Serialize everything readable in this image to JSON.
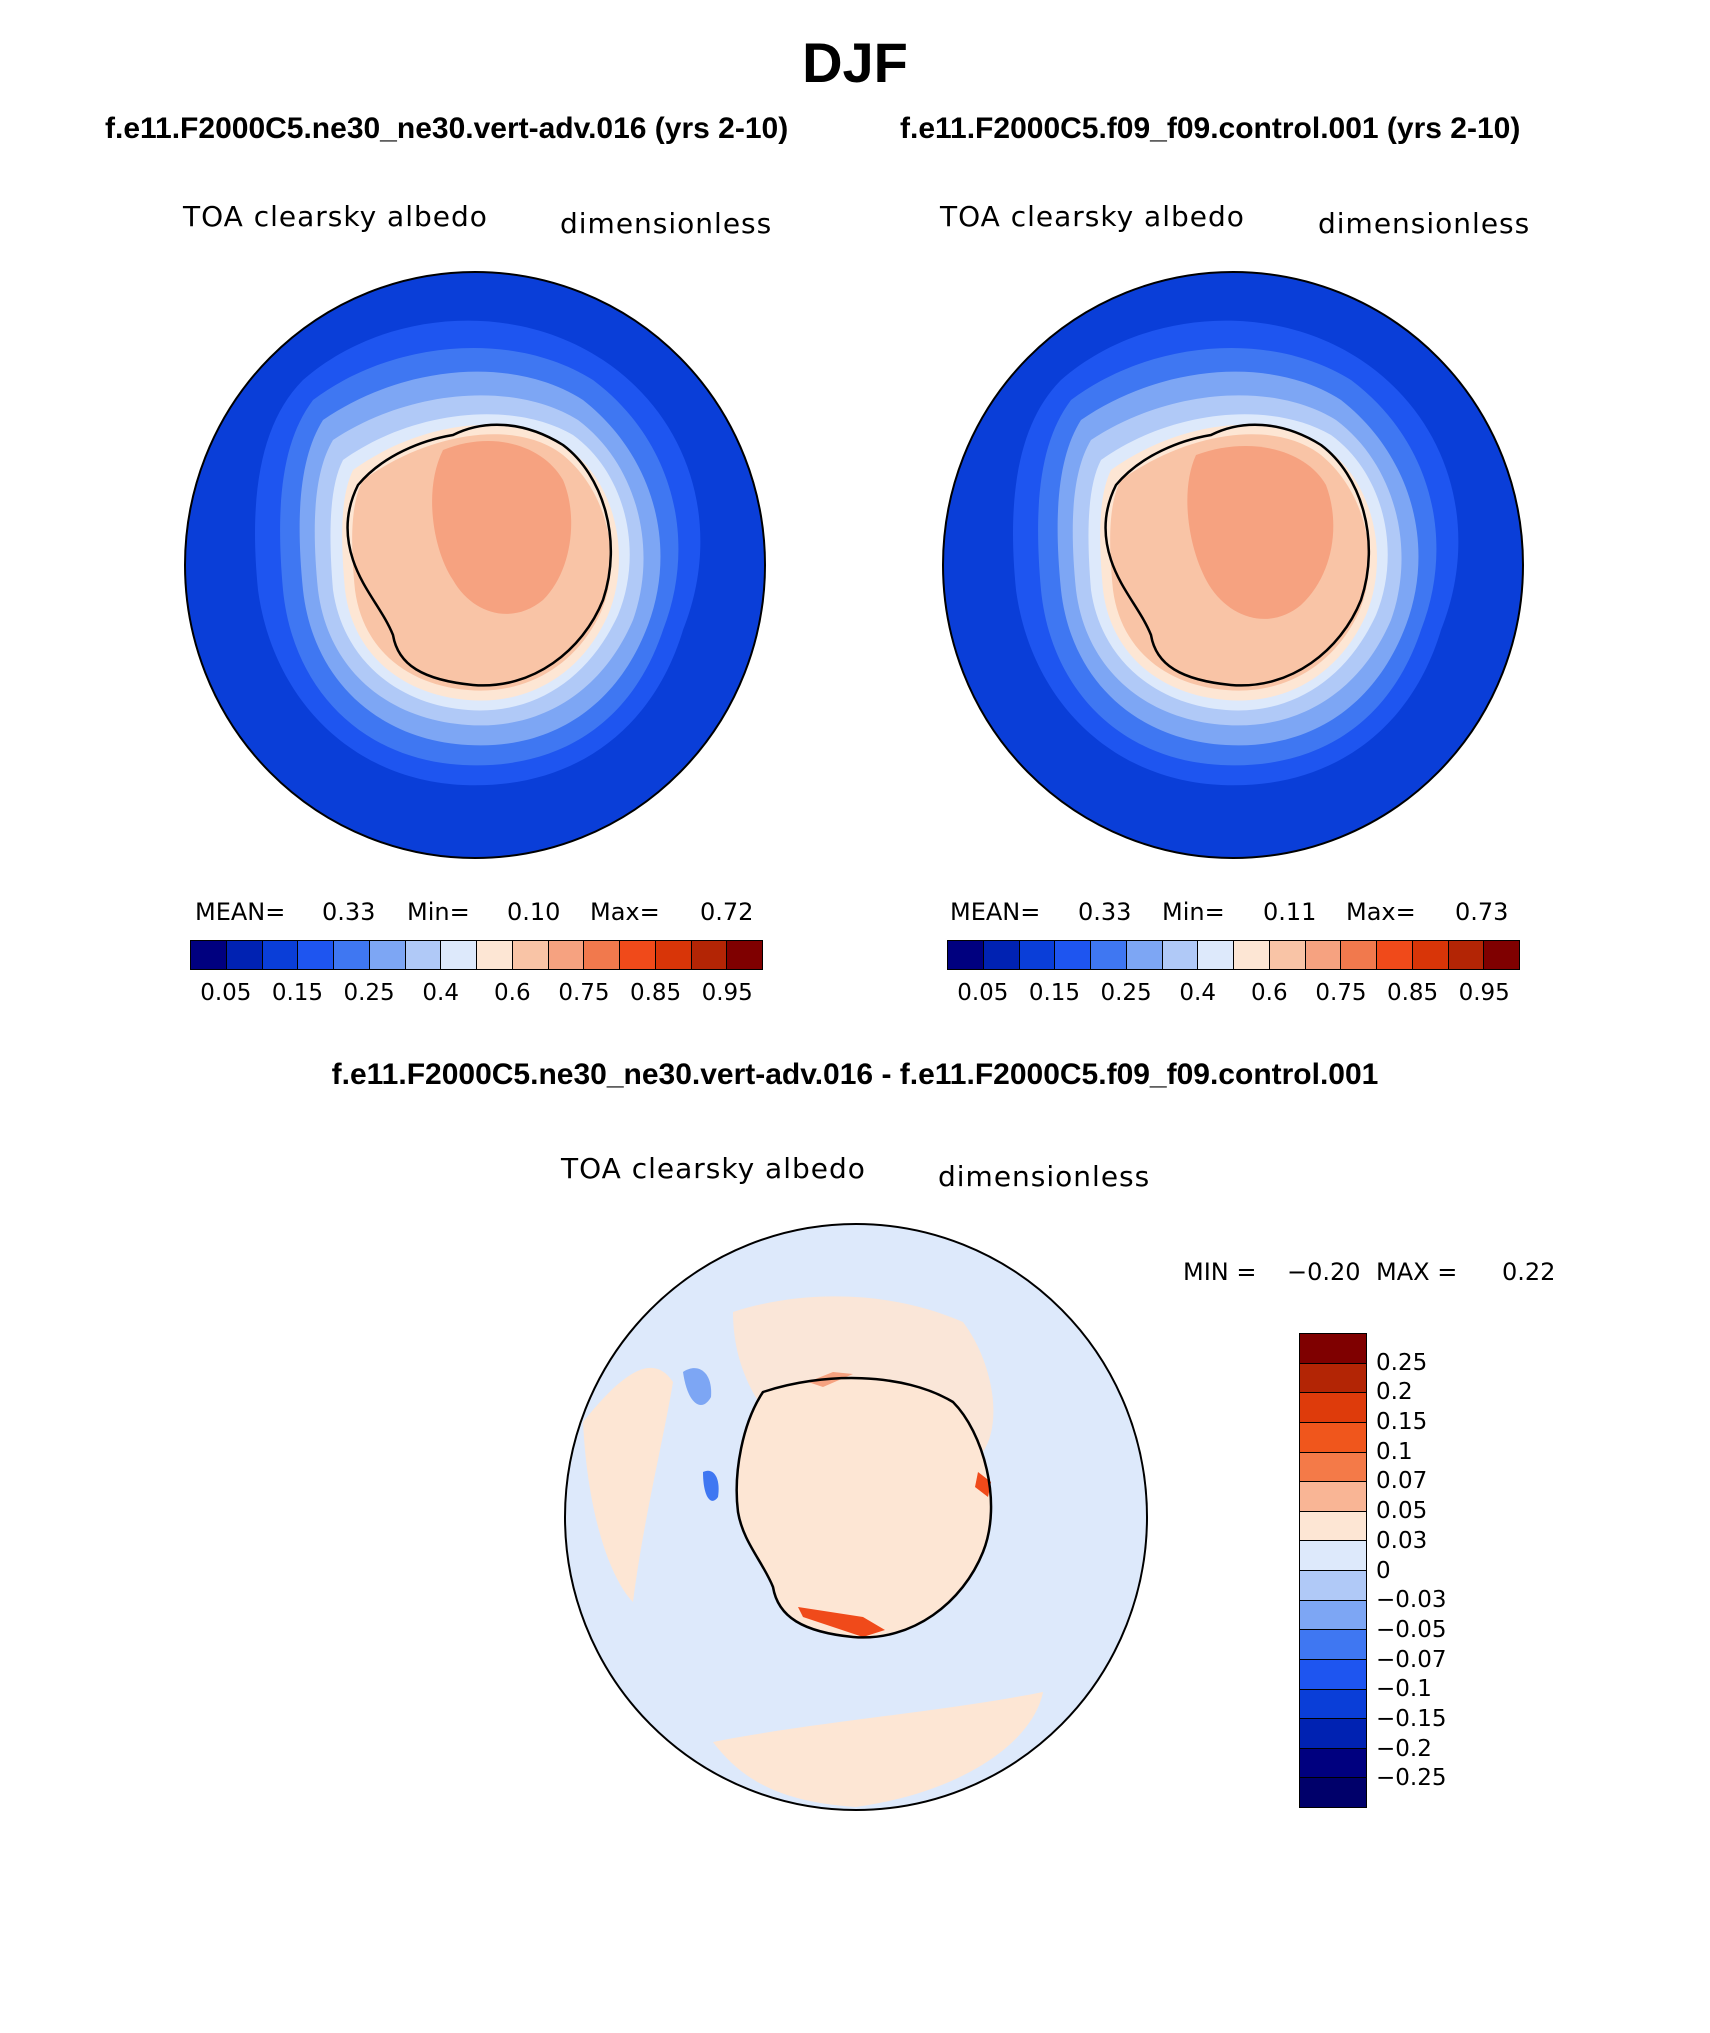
{
  "title": "DJF",
  "panels": [
    {
      "case": "f.e11.F2000C5.ne30_ne30.vert-adv.016 (yrs 2-10)",
      "variable": "TOA clearsky albedo",
      "units": "dimensionless",
      "stats": {
        "mean_label": "MEAN=",
        "mean": "0.33",
        "min_label": "Min=",
        "min": "0.10",
        "max_label": "Max=",
        "max": "0.72"
      }
    },
    {
      "case": "f.e11.F2000C5.f09_f09.control.001 (yrs 2-10)",
      "variable": "TOA clearsky albedo",
      "units": "dimensionless",
      "stats": {
        "mean_label": "MEAN=",
        "mean": "0.33",
        "min_label": "Min=",
        "min": "0.11",
        "max_label": "Max=",
        "max": "0.73"
      }
    }
  ],
  "colorbar": {
    "colors": [
      "#00007f",
      "#0022b2",
      "#0a3ed8",
      "#1e55f0",
      "#3f77f2",
      "#7da6f4",
      "#b0c9f7",
      "#dde9fb",
      "#fde6d4",
      "#f9c4a6",
      "#f6a280",
      "#f1794d",
      "#f04a1a",
      "#d83508",
      "#b32505",
      "#7f0000"
    ],
    "tick_labels": [
      "0.05",
      "0.15",
      "0.25",
      "0.4",
      "0.6",
      "0.75",
      "0.85",
      "0.95"
    ]
  },
  "difference": {
    "title": "f.e11.F2000C5.ne30_ne30.vert-adv.016 - f.e11.F2000C5.f09_f09.control.001",
    "variable": "TOA clearsky albedo",
    "units": "dimensionless",
    "min_label": "MIN =",
    "min": "−0.20",
    "max_label": "MAX =",
    "max": "0.22",
    "colors": [
      "#7f0000",
      "#b32505",
      "#de3b0b",
      "#f0561c",
      "#f47a48",
      "#f9b595",
      "#fde6d4",
      "#dde9fb",
      "#b0c9f7",
      "#7da6f4",
      "#3f77f2",
      "#1e55f0",
      "#0a3ed8",
      "#0022b2",
      "#00007f",
      "#00006a"
    ],
    "tick_labels": [
      "0.25",
      "0.2",
      "0.15",
      "0.1",
      "0.07",
      "0.05",
      "0.03",
      "0",
      "−0.03",
      "−0.05",
      "−0.07",
      "−0.1",
      "−0.15",
      "−0.2",
      "−0.25"
    ]
  }
}
